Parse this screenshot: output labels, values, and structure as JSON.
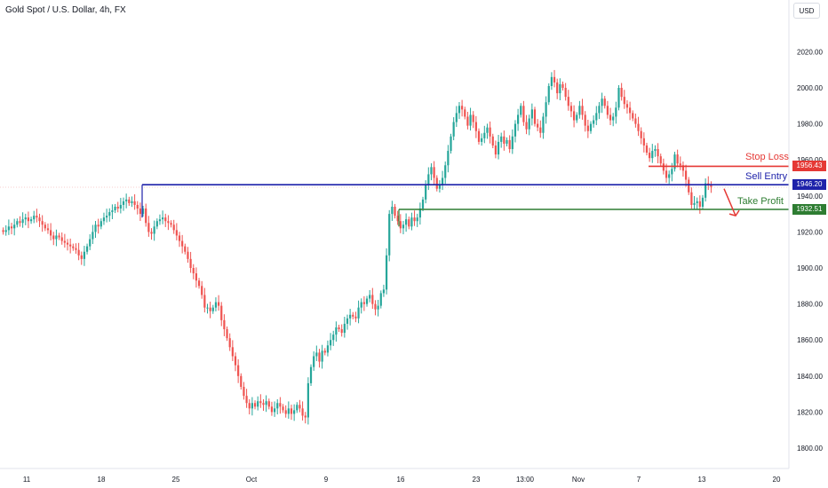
{
  "header": {
    "title": "Gold Spot / U.S. Dollar, 4h, FX",
    "currency": "USD"
  },
  "colors": {
    "up": "#26a69a",
    "down": "#ef5350",
    "stop_loss": "#e53935",
    "sell_entry": "#1e22aa",
    "take_profit": "#2e7d32",
    "arrow": "#e53935"
  },
  "chart_data": {
    "type": "candlestick",
    "y_ticks": [
      1800,
      1820,
      1840,
      1860,
      1880,
      1900,
      1920,
      1940,
      1960,
      1980,
      2000,
      2020
    ],
    "y_tick_labels": [
      "1800.00",
      "1820.00",
      "1840.00",
      "1860.00",
      "1880.00",
      "1900.00",
      "1920.00",
      "1940.00",
      "1960.00",
      "1980.00",
      "2000.00",
      "2020.00"
    ],
    "ylim": [
      1795,
      2030
    ],
    "x_ticks": [
      "11",
      "18",
      "25",
      "Oct",
      "9",
      "16",
      "23",
      "13:00",
      "Nov",
      "7",
      "13",
      "20"
    ],
    "grid": false,
    "levels": [
      {
        "name": "Stop Loss",
        "value": 1956.43,
        "label_text": "1956.43"
      },
      {
        "name": "Sell Entry",
        "value": 1946.2,
        "label_text": "1946.20"
      },
      {
        "name": "Take Profit",
        "value": 1932.51,
        "label_text": "1932.51"
      }
    ],
    "closes": [
      1920,
      1921,
      1923,
      1922,
      1924,
      1926,
      1925,
      1927,
      1928,
      1926,
      1927,
      1929,
      1928,
      1926,
      1924,
      1922,
      1921,
      1918,
      1916,
      1918,
      1917,
      1915,
      1914,
      1913,
      1912,
      1911,
      1910,
      1907,
      1905,
      1909,
      1912,
      1916,
      1920,
      1924,
      1923,
      1926,
      1928,
      1929,
      1931,
      1932,
      1934,
      1933,
      1935,
      1937,
      1938,
      1936,
      1937,
      1935,
      1933,
      1930,
      1933,
      1925,
      1920,
      1919,
      1923,
      1926,
      1927,
      1928,
      1926,
      1925,
      1924,
      1921,
      1918,
      1915,
      1912,
      1909,
      1905,
      1900,
      1897,
      1893,
      1890,
      1885,
      1878,
      1878,
      1876,
      1878,
      1881,
      1879,
      1871,
      1866,
      1861,
      1856,
      1851,
      1846,
      1840,
      1834,
      1829,
      1825,
      1822,
      1825,
      1823,
      1826,
      1825,
      1824,
      1826,
      1823,
      1820,
      1822,
      1825,
      1823,
      1821,
      1819,
      1822,
      1819,
      1821,
      1824,
      1822,
      1818,
      1817,
      1836,
      1845,
      1851,
      1853,
      1848,
      1854,
      1853,
      1857,
      1860,
      1863,
      1867,
      1866,
      1864,
      1869,
      1872,
      1874,
      1873,
      1872,
      1878,
      1881,
      1880,
      1883,
      1885,
      1880,
      1877,
      1879,
      1886,
      1888,
      1907,
      1930,
      1934,
      1929,
      1926,
      1922,
      1924,
      1927,
      1923,
      1928,
      1926,
      1928,
      1933,
      1938,
      1946,
      1952,
      1956,
      1950,
      1944,
      1946,
      1950,
      1957,
      1965,
      1973,
      1981,
      1986,
      1990,
      1988,
      1984,
      1979,
      1985,
      1981,
      1976,
      1970,
      1972,
      1975,
      1978,
      1973,
      1968,
      1963,
      1970,
      1973,
      1969,
      1971,
      1966,
      1973,
      1980,
      1985,
      1990,
      1981,
      1977,
      1983,
      1988,
      1980,
      1978,
      1975,
      1984,
      1992,
      2001,
      2006,
      2003,
      1997,
      2002,
      2000,
      1995,
      1990,
      1987,
      1982,
      1985,
      1990,
      1985,
      1979,
      1976,
      1980,
      1982,
      1986,
      1990,
      1994,
      1990,
      1985,
      1982,
      1984,
      1989,
      2000,
      1995,
      1991,
      1989,
      1986,
      1983,
      1980,
      1976,
      1972,
      1968,
      1964,
      1961,
      1965,
      1966,
      1962,
      1958,
      1954,
      1950,
      1952,
      1955,
      1963,
      1958,
      1957,
      1954,
      1949,
      1942,
      1935,
      1936,
      1937,
      1934,
      1939,
      1947,
      1946,
      1945
    ]
  }
}
